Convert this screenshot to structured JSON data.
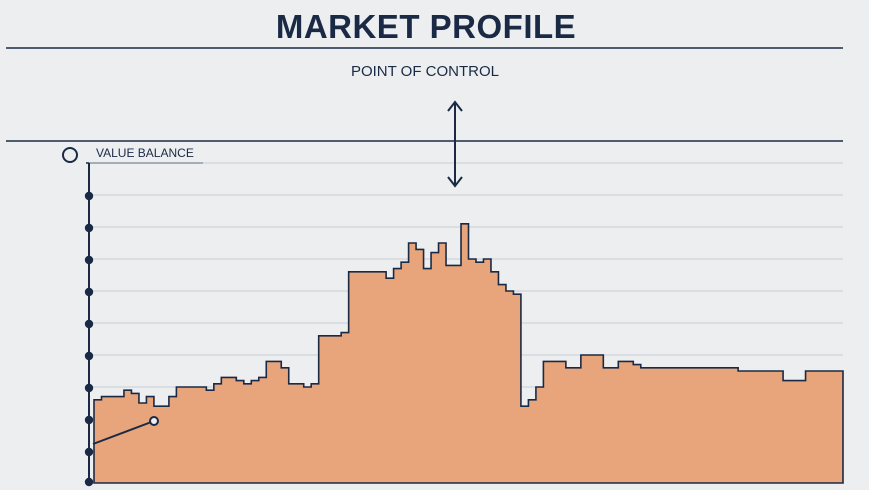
{
  "header": {
    "title": "MARKET PROFILE",
    "subtitle": "POINT OF CONTROL"
  },
  "legend": {
    "value_balance_label": "VALUE BALANCE"
  },
  "colors": {
    "background": "#eceef0",
    "ink": "#1b2a44",
    "fill": "#e8a57c",
    "grid": "#c9ced6"
  },
  "chart_data": {
    "type": "area",
    "title": "MARKET PROFILE",
    "xlabel": "",
    "ylabel": "",
    "xlim": [
      0,
      100
    ],
    "ylim": [
      0,
      100
    ],
    "grid": true,
    "annotations": [
      {
        "label": "POINT OF CONTROL",
        "x": 49
      },
      {
        "label": "VALUE BALANCE",
        "y": 20
      }
    ],
    "series": [
      {
        "x": [
          0,
          1,
          2,
          3,
          4,
          5,
          6,
          7,
          8,
          9,
          10,
          11,
          12,
          13,
          14,
          15,
          16,
          17,
          18,
          19,
          20,
          21,
          22,
          23,
          24,
          25,
          26,
          27,
          28,
          29,
          30,
          31,
          32,
          33,
          34,
          35,
          36,
          37,
          38,
          39,
          40,
          41,
          42,
          43,
          44,
          45,
          46,
          47,
          48,
          49,
          50,
          51,
          52,
          53,
          54,
          55,
          56,
          57,
          58,
          59,
          60,
          61,
          62,
          63,
          64,
          65,
          66,
          67,
          68,
          69,
          70,
          71,
          72,
          73,
          74,
          75,
          76,
          77,
          78,
          79,
          80,
          81,
          82,
          83,
          84,
          85,
          86,
          87,
          88,
          89,
          90,
          91,
          92,
          93,
          94,
          95,
          96,
          97,
          98,
          99,
          100
        ],
        "values": [
          26,
          27,
          27,
          27,
          29,
          28,
          25,
          27,
          24,
          24,
          27,
          30,
          30,
          30,
          30,
          29,
          31,
          33,
          33,
          32,
          31,
          32,
          33,
          38,
          38,
          36,
          31,
          31,
          30,
          31,
          46,
          46,
          46,
          47,
          66,
          66,
          66,
          66,
          66,
          64,
          67,
          69,
          75,
          73,
          67,
          72,
          75,
          68,
          68,
          81,
          70,
          69,
          70,
          66,
          62,
          60,
          59,
          24,
          26,
          30,
          38,
          38,
          38,
          36,
          36,
          40,
          40,
          40,
          36,
          36,
          38,
          38,
          37,
          36,
          36,
          36,
          36,
          36,
          36,
          36,
          36,
          36,
          36,
          36,
          36,
          36,
          35,
          35,
          35,
          35,
          35,
          35,
          32,
          32,
          32,
          35,
          35,
          35,
          35,
          35,
          35
        ]
      }
    ]
  }
}
